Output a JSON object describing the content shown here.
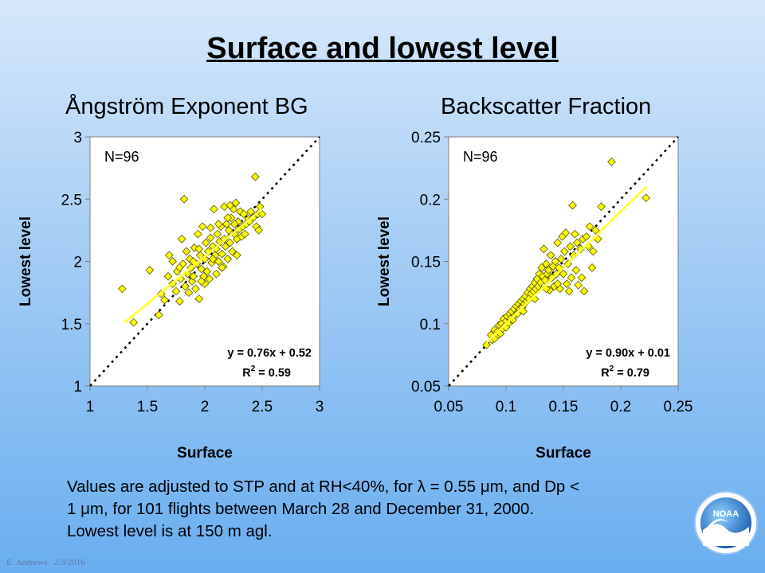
{
  "slide": {
    "title": "Surface and lowest level",
    "caption_line1": "Values are adjusted to STP and at RH<40%, for λ = 0.55 μm, and Dp <",
    "caption_line2": "1 μm, for 101 flights between March 28 and December 31, 2000.",
    "caption_line3": "Lowest level is at 150 m agl.",
    "footer_author": "E. Andrews",
    "footer_date": "2/3/2016",
    "logo_text": "NOAA"
  },
  "chart_data": [
    {
      "type": "scatter",
      "title": "Ångström Exponent BG",
      "xlabel": "Surface",
      "ylabel": "Lowest level",
      "xlim": [
        1,
        3
      ],
      "ylim": [
        1,
        3
      ],
      "xticks": [
        "1",
        "1.5",
        "2",
        "2.5",
        "3"
      ],
      "yticks": [
        "1",
        "1.5",
        "2",
        "2.5",
        "3"
      ],
      "n_label": "N=96",
      "fit_equation": "y = 0.76x + 0.52",
      "r2_prefix": "R",
      "r2_sup": "2",
      "r2_value": " = 0.59",
      "fit": {
        "slope": 0.76,
        "intercept": 0.52,
        "x_range": [
          1.3,
          2.5
        ]
      },
      "one_to_one_line": true,
      "grid": false,
      "marker_color": "#ffff00",
      "fit_color": "#ffff40",
      "points": [
        [
          1.28,
          1.78
        ],
        [
          1.38,
          1.51
        ],
        [
          1.52,
          1.93
        ],
        [
          1.6,
          1.57
        ],
        [
          1.62,
          1.74
        ],
        [
          1.65,
          1.69
        ],
        [
          1.68,
          1.88
        ],
        [
          1.69,
          2.05
        ],
        [
          1.72,
          1.82
        ],
        [
          1.75,
          1.76
        ],
        [
          1.76,
          1.92
        ],
        [
          1.78,
          1.68
        ],
        [
          1.79,
          1.86
        ],
        [
          1.8,
          2.18
        ],
        [
          1.81,
          1.98
        ],
        [
          1.82,
          2.5
        ],
        [
          1.83,
          1.8
        ],
        [
          1.84,
          2.08
        ],
        [
          1.85,
          1.9
        ],
        [
          1.87,
          2.02
        ],
        [
          1.88,
          1.95
        ],
        [
          1.89,
          1.84
        ],
        [
          1.9,
          1.88
        ],
        [
          1.91,
          2.11
        ],
        [
          1.92,
          1.78
        ],
        [
          1.93,
          1.98
        ],
        [
          1.94,
          2.22
        ],
        [
          1.95,
          1.7
        ],
        [
          1.96,
          2.05
        ],
        [
          1.97,
          1.94
        ],
        [
          1.98,
          2.28
        ],
        [
          1.99,
          1.88
        ],
        [
          2.0,
          2.02
        ],
        [
          2.01,
          2.15
        ],
        [
          2.02,
          1.92
        ],
        [
          2.03,
          2.08
        ],
        [
          2.04,
          1.86
        ],
        [
          2.05,
          2.19
        ],
        [
          2.06,
          1.99
        ],
        [
          2.07,
          2.12
        ],
        [
          2.08,
          2.42
        ],
        [
          2.09,
          2.05
        ],
        [
          2.1,
          1.9
        ],
        [
          2.11,
          2.22
        ],
        [
          2.12,
          2.0
        ],
        [
          2.13,
          2.16
        ],
        [
          2.14,
          2.28
        ],
        [
          2.15,
          2.06
        ],
        [
          2.16,
          1.96
        ],
        [
          2.17,
          2.44
        ],
        [
          2.18,
          2.12
        ],
        [
          2.19,
          2.3
        ],
        [
          2.2,
          2.02
        ],
        [
          2.21,
          2.25
        ],
        [
          2.22,
          2.15
        ],
        [
          2.23,
          2.35
        ],
        [
          2.24,
          2.08
        ],
        [
          2.25,
          2.42
        ],
        [
          2.26,
          2.22
        ],
        [
          2.27,
          2.47
        ],
        [
          2.28,
          2.18
        ],
        [
          2.29,
          2.32
        ],
        [
          2.3,
          2.26
        ],
        [
          2.31,
          2.4
        ],
        [
          2.32,
          2.2
        ],
        [
          2.33,
          2.28
        ],
        [
          2.34,
          2.38
        ],
        [
          2.36,
          2.3
        ],
        [
          2.38,
          2.34
        ],
        [
          2.4,
          2.4
        ],
        [
          2.42,
          2.35
        ],
        [
          2.44,
          2.68
        ],
        [
          2.45,
          2.28
        ],
        [
          2.46,
          2.38
        ],
        [
          2.47,
          2.25
        ],
        [
          2.48,
          2.44
        ],
        [
          2.5,
          2.38
        ],
        [
          1.72,
          2.0
        ],
        [
          1.86,
          1.75
        ],
        [
          1.95,
          2.1
        ],
        [
          2.0,
          1.82
        ],
        [
          2.05,
          2.27
        ],
        [
          2.1,
          2.1
        ],
        [
          2.15,
          1.95
        ],
        [
          2.2,
          2.35
        ],
        [
          2.28,
          2.05
        ],
        [
          1.78,
          1.95
        ],
        [
          1.9,
          2.0
        ],
        [
          2.12,
          2.3
        ],
        [
          2.22,
          2.45
        ],
        [
          2.35,
          2.22
        ],
        [
          1.97,
          1.84
        ],
        [
          2.07,
          2.02
        ],
        [
          2.17,
          2.18
        ],
        [
          2.26,
          2.3
        ],
        [
          2.39,
          2.32
        ]
      ]
    },
    {
      "type": "scatter",
      "title": "Backscatter Fraction",
      "xlabel": "Surface",
      "ylabel": "Lowest level",
      "xlim": [
        0.05,
        0.25
      ],
      "ylim": [
        0.05,
        0.25
      ],
      "xticks": [
        "0.05",
        "0.1",
        "0.15",
        "0.2",
        "0.25"
      ],
      "yticks": [
        "0.05",
        "0.1",
        "0.15",
        "0.2",
        "0.25"
      ],
      "n_label": "N=96",
      "fit_equation": "y = 0.90x + 0.01",
      "r2_prefix": "R",
      "r2_sup": "2",
      "r2_value": " = 0.79",
      "fit": {
        "slope": 0.9,
        "intercept": 0.01,
        "x_range": [
          0.083,
          0.222
        ]
      },
      "one_to_one_line": true,
      "grid": false,
      "marker_color": "#ffff00",
      "fit_color": "#ffff40",
      "points": [
        [
          0.083,
          0.083
        ],
        [
          0.087,
          0.091
        ],
        [
          0.088,
          0.087
        ],
        [
          0.09,
          0.095
        ],
        [
          0.092,
          0.09
        ],
        [
          0.093,
          0.094
        ],
        [
          0.094,
          0.099
        ],
        [
          0.095,
          0.092
        ],
        [
          0.096,
          0.1
        ],
        [
          0.097,
          0.096
        ],
        [
          0.098,
          0.104
        ],
        [
          0.099,
          0.098
        ],
        [
          0.1,
          0.102
        ],
        [
          0.101,
          0.106
        ],
        [
          0.102,
          0.1
        ],
        [
          0.103,
          0.108
        ],
        [
          0.104,
          0.104
        ],
        [
          0.105,
          0.11
        ],
        [
          0.106,
          0.103
        ],
        [
          0.107,
          0.112
        ],
        [
          0.108,
          0.107
        ],
        [
          0.109,
          0.114
        ],
        [
          0.11,
          0.108
        ],
        [
          0.111,
          0.116
        ],
        [
          0.112,
          0.112
        ],
        [
          0.113,
          0.118
        ],
        [
          0.114,
          0.113
        ],
        [
          0.115,
          0.12
        ],
        [
          0.116,
          0.116
        ],
        [
          0.117,
          0.122
        ],
        [
          0.118,
          0.118
        ],
        [
          0.119,
          0.125
        ],
        [
          0.12,
          0.12
        ],
        [
          0.121,
          0.128
        ],
        [
          0.122,
          0.124
        ],
        [
          0.123,
          0.13
        ],
        [
          0.124,
          0.126
        ],
        [
          0.125,
          0.133
        ],
        [
          0.126,
          0.128
        ],
        [
          0.127,
          0.136
        ],
        [
          0.128,
          0.13
        ],
        [
          0.129,
          0.14
        ],
        [
          0.13,
          0.133
        ],
        [
          0.131,
          0.145
        ],
        [
          0.132,
          0.138
        ],
        [
          0.133,
          0.16
        ],
        [
          0.134,
          0.135
        ],
        [
          0.135,
          0.148
        ],
        [
          0.136,
          0.14
        ],
        [
          0.137,
          0.143
        ],
        [
          0.138,
          0.127
        ],
        [
          0.139,
          0.155
        ],
        [
          0.14,
          0.137
        ],
        [
          0.141,
          0.146
        ],
        [
          0.142,
          0.13
        ],
        [
          0.143,
          0.15
        ],
        [
          0.144,
          0.14
        ],
        [
          0.145,
          0.165
        ],
        [
          0.146,
          0.145
        ],
        [
          0.147,
          0.128
        ],
        [
          0.148,
          0.152
        ],
        [
          0.149,
          0.17
        ],
        [
          0.15,
          0.14
        ],
        [
          0.151,
          0.158
        ],
        [
          0.152,
          0.173
        ],
        [
          0.153,
          0.132
        ],
        [
          0.154,
          0.148
        ],
        [
          0.155,
          0.126
        ],
        [
          0.156,
          0.162
        ],
        [
          0.157,
          0.137
        ],
        [
          0.158,
          0.195
        ],
        [
          0.159,
          0.155
        ],
        [
          0.16,
          0.172
        ],
        [
          0.161,
          0.143
        ],
        [
          0.162,
          0.165
        ],
        [
          0.163,
          0.131
        ],
        [
          0.165,
          0.16
        ],
        [
          0.166,
          0.137
        ],
        [
          0.167,
          0.168
        ],
        [
          0.168,
          0.126
        ],
        [
          0.17,
          0.17
        ],
        [
          0.172,
          0.162
        ],
        [
          0.173,
          0.178
        ],
        [
          0.175,
          0.145
        ],
        [
          0.176,
          0.158
        ],
        [
          0.178,
          0.175
        ],
        [
          0.18,
          0.168
        ],
        [
          0.183,
          0.194
        ],
        [
          0.192,
          0.23
        ],
        [
          0.222,
          0.201
        ],
        [
          0.09,
          0.088
        ],
        [
          0.1,
          0.097
        ],
        [
          0.115,
          0.11
        ],
        [
          0.125,
          0.12
        ],
        [
          0.135,
          0.128
        ],
        [
          0.145,
          0.132
        ]
      ]
    }
  ]
}
